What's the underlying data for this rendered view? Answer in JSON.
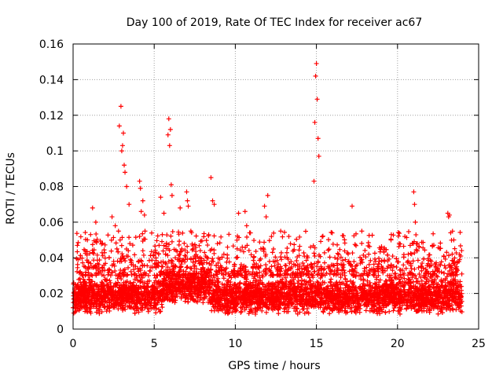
{
  "chart_data": {
    "type": "scatter",
    "title": "Day 100 of 2019, Rate Of TEC Index for receiver ac67",
    "xlabel": "GPS time / hours",
    "ylabel": "ROTI / TECUs",
    "xlim": [
      0,
      25
    ],
    "ylim": [
      0,
      0.16
    ],
    "xticks": [
      0,
      5,
      10,
      15,
      20,
      25
    ],
    "xtick_labels": [
      "0",
      "5",
      "10",
      "15",
      "20",
      "25"
    ],
    "yticks": [
      0,
      0.02,
      0.04,
      0.06,
      0.08,
      0.1,
      0.12,
      0.14,
      0.16
    ],
    "ytick_labels": [
      "0",
      "0.02",
      "0.04",
      "0.06",
      "0.08",
      "0.1",
      "0.12",
      "0.14",
      "0.16"
    ],
    "grid": true,
    "marker": "+",
    "color": "#ff0000",
    "series": [
      {
        "name": "ROTI",
        "x": [
          0.0,
          0.15,
          0.3,
          0.45,
          0.6,
          0.8,
          1.0,
          1.15,
          1.3,
          1.5,
          1.7,
          1.9,
          2.1,
          2.3,
          2.5,
          2.7,
          2.9,
          3.1,
          3.3,
          3.5,
          3.7,
          3.9,
          4.1,
          4.3,
          4.5,
          4.7,
          4.9,
          5.1,
          5.3,
          5.5,
          5.7,
          5.9,
          6.1,
          6.3,
          6.5,
          6.7,
          6.9,
          7.1,
          7.3,
          7.5,
          7.7,
          7.9,
          8.1,
          8.3,
          8.5,
          8.7,
          8.9,
          9.1,
          9.3,
          9.5,
          9.7,
          9.9,
          10.1,
          10.3,
          10.5,
          10.7,
          10.9,
          11.1,
          11.3,
          11.5,
          11.7,
          11.9,
          12.1,
          12.3,
          12.5,
          12.7,
          12.9,
          13.1,
          13.3,
          13.5,
          13.7,
          13.9,
          14.1,
          14.3,
          14.5,
          14.7,
          14.9,
          15.1,
          15.3,
          15.5,
          15.7,
          15.9,
          16.1,
          16.3,
          16.5,
          16.7,
          16.9,
          17.1,
          17.3,
          17.5,
          17.7,
          17.9,
          18.1,
          18.3,
          18.5,
          18.7,
          18.9,
          19.1,
          19.3,
          19.5,
          19.7,
          19.9,
          20.1,
          20.3,
          20.5,
          20.7,
          20.9,
          21.1,
          21.3,
          21.5,
          21.7,
          21.9,
          22.1,
          22.3,
          22.5,
          22.7,
          22.9,
          23.1,
          23.3,
          23.5,
          23.7,
          23.9,
          1.2,
          1.4,
          2.4,
          2.6,
          2.8,
          2.85,
          2.95,
          3.0,
          3.05,
          3.1,
          3.15,
          3.2,
          3.3,
          3.45,
          4.1,
          4.15,
          4.2,
          4.3,
          4.4,
          5.4,
          5.6,
          5.85,
          5.9,
          5.95,
          6.0,
          6.05,
          6.1,
          6.6,
          7.0,
          7.05,
          7.1,
          8.5,
          8.6,
          8.7,
          10.2,
          10.6,
          10.7,
          11.8,
          11.9,
          12.0,
          12.8,
          13.3,
          14.85,
          14.9,
          14.95,
          15.0,
          15.05,
          15.1,
          15.15,
          17.2,
          17.8,
          19.6,
          20.1,
          21.0,
          21.05,
          21.1,
          23.1,
          23.15,
          23.2,
          23.9
        ],
        "y": [
          0.012,
          0.025,
          0.018,
          0.032,
          0.02,
          0.015,
          0.028,
          0.022,
          0.035,
          0.017,
          0.024,
          0.03,
          0.019,
          0.026,
          0.038,
          0.045,
          0.05,
          0.033,
          0.041,
          0.048,
          0.036,
          0.029,
          0.052,
          0.044,
          0.031,
          0.027,
          0.022,
          0.035,
          0.047,
          0.053,
          0.042,
          0.038,
          0.049,
          0.04,
          0.032,
          0.045,
          0.039,
          0.028,
          0.034,
          0.041,
          0.026,
          0.037,
          0.043,
          0.031,
          0.036,
          0.029,
          0.024,
          0.022,
          0.033,
          0.027,
          0.025,
          0.021,
          0.03,
          0.026,
          0.034,
          0.028,
          0.031,
          0.023,
          0.027,
          0.029,
          0.025,
          0.032,
          0.024,
          0.03,
          0.026,
          0.021,
          0.028,
          0.033,
          0.025,
          0.029,
          0.031,
          0.027,
          0.034,
          0.022,
          0.03,
          0.036,
          0.041,
          0.038,
          0.03,
          0.026,
          0.024,
          0.028,
          0.031,
          0.025,
          0.029,
          0.033,
          0.022,
          0.027,
          0.03,
          0.036,
          0.024,
          0.028,
          0.031,
          0.026,
          0.032,
          0.029,
          0.024,
          0.021,
          0.027,
          0.03,
          0.025,
          0.023,
          0.028,
          0.033,
          0.026,
          0.022,
          0.029,
          0.024,
          0.02,
          0.027,
          0.023,
          0.019,
          0.025,
          0.028,
          0.021,
          0.024,
          0.02,
          0.026,
          0.022,
          0.018,
          0.023,
          0.019,
          0.068,
          0.06,
          0.063,
          0.058,
          0.055,
          0.114,
          0.125,
          0.1,
          0.103,
          0.11,
          0.092,
          0.088,
          0.08,
          0.07,
          0.083,
          0.079,
          0.066,
          0.072,
          0.064,
          0.074,
          0.065,
          0.109,
          0.118,
          0.103,
          0.112,
          0.081,
          0.075,
          0.068,
          0.077,
          0.072,
          0.069,
          0.085,
          0.072,
          0.07,
          0.065,
          0.066,
          0.058,
          0.069,
          0.063,
          0.075,
          0.055,
          0.052,
          0.083,
          0.116,
          0.142,
          0.149,
          0.129,
          0.107,
          0.097,
          0.069,
          0.055,
          0.05,
          0.048,
          0.077,
          0.07,
          0.06,
          0.065,
          0.063,
          0.064,
          0.041
        ]
      }
    ],
    "background_noise": "dense band of points between ~0.005 and ~0.035 across 0–24 h"
  }
}
